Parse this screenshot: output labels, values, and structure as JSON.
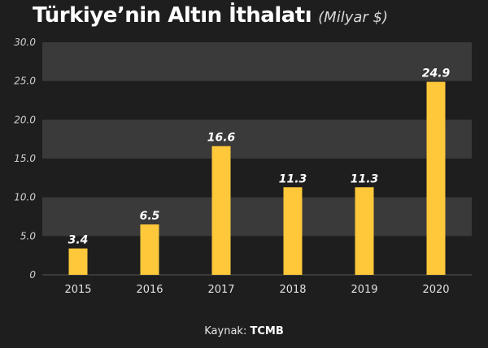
{
  "chart_data": {
    "type": "bar",
    "title": "Türkiye’nin Altın İthalatı",
    "subtitle": "(Milyar $)",
    "categories": [
      "2015",
      "2016",
      "2017",
      "2018",
      "2019",
      "2020"
    ],
    "values": [
      3.4,
      6.5,
      16.6,
      11.3,
      11.3,
      24.9
    ],
    "data_labels": [
      "3.4",
      "6.5",
      "16.6",
      "11.3",
      "11.3",
      "24.9"
    ],
    "y_ticks": [
      "0",
      "5.0",
      "10.0",
      "15.0",
      "20.0",
      "25.0",
      "30.0"
    ],
    "ylim": [
      0,
      30
    ],
    "xlabel": "",
    "ylabel": "",
    "bar_color": "#ffc83a",
    "band_color": "#3a3a3a",
    "background_color": "#1e1e1e"
  },
  "source": {
    "label": "Kaynak:",
    "name": "TCMB"
  }
}
